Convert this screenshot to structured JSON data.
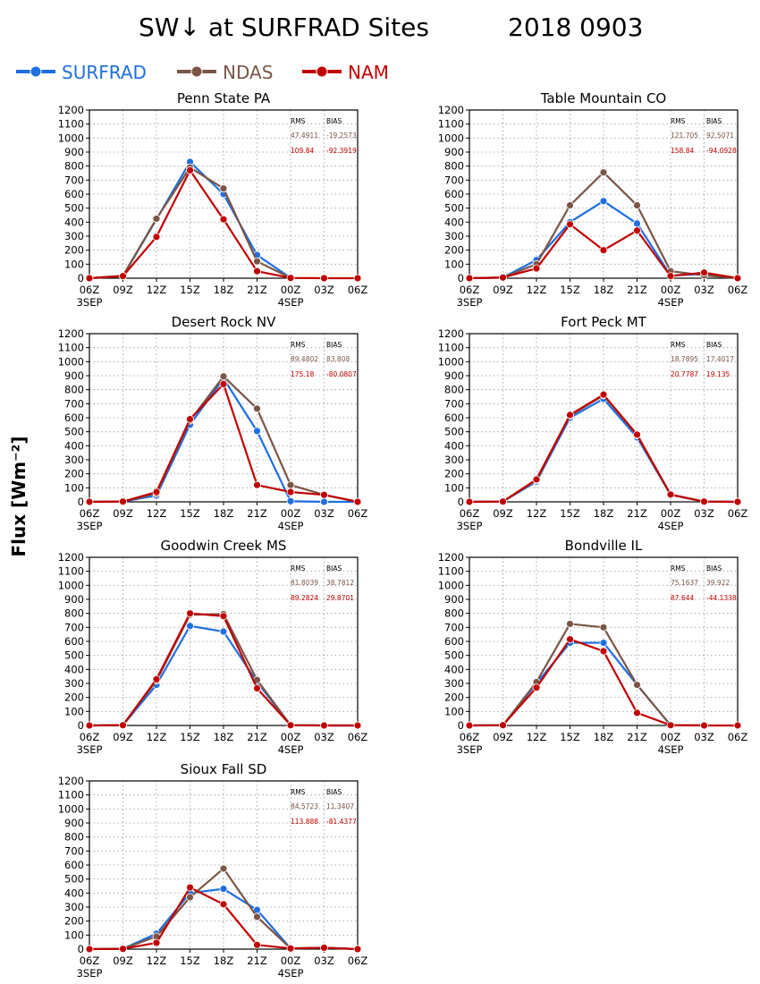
{
  "title": "SW↓ at SURFRAD Sites",
  "date": "2018 0903",
  "ylabel": "Flux [Wm⁻²]",
  "colors": {
    "SURFRAD": "#1f6fe0",
    "NDAS": "#7a5546",
    "NAM": "#c00000"
  },
  "legend": [
    {
      "name": "SURFRAD",
      "color": "#1f6fe0"
    },
    {
      "name": "NDAS",
      "color": "#7a5546"
    },
    {
      "name": "NAM",
      "color": "#c00000"
    }
  ],
  "stats_headers": {
    "rms": "RMS",
    "bias": "BIAS"
  },
  "chart_data": [
    {
      "type": "line",
      "title": "Penn State PA",
      "x": [
        "06Z",
        "09Z",
        "12Z",
        "15Z",
        "18Z",
        "21Z",
        "00Z",
        "03Z",
        "06Z"
      ],
      "date_labels": [
        "3SEP",
        "",
        "",
        "",
        "",
        "",
        "4SEP",
        "",
        ""
      ],
      "ylim": [
        0,
        1200
      ],
      "yticks": [
        0,
        100,
        200,
        300,
        400,
        500,
        600,
        700,
        800,
        900,
        1000,
        1100,
        1200
      ],
      "grid": true,
      "series": [
        {
          "name": "SURFRAD",
          "values": [
            0,
            15,
            420,
            830,
            600,
            165,
            2,
            null,
            null
          ]
        },
        {
          "name": "NDAS",
          "values": [
            0,
            18,
            425,
            790,
            640,
            120,
            2,
            null,
            null
          ]
        },
        {
          "name": "NAM",
          "values": [
            0,
            15,
            295,
            770,
            420,
            50,
            2,
            0,
            0
          ]
        }
      ],
      "stats": {
        "NDAS": {
          "rms": "47.4911",
          "bias": "-19.2573"
        },
        "NAM": {
          "rms": "109.84",
          "bias": "-92.3919"
        }
      }
    },
    {
      "type": "line",
      "title": "Table Mountain CO",
      "x": [
        "06Z",
        "09Z",
        "12Z",
        "15Z",
        "18Z",
        "21Z",
        "00Z",
        "03Z",
        "06Z"
      ],
      "date_labels": [
        "3SEP",
        "",
        "",
        "",
        "",
        "",
        "4SEP",
        "",
        ""
      ],
      "ylim": [
        0,
        1200
      ],
      "yticks": [
        0,
        100,
        200,
        300,
        400,
        500,
        600,
        700,
        800,
        900,
        1000,
        1100,
        1200
      ],
      "grid": true,
      "series": [
        {
          "name": "SURFRAD",
          "values": [
            0,
            5,
            130,
            400,
            550,
            390,
            20,
            30,
            0
          ]
        },
        {
          "name": "NDAS",
          "values": [
            0,
            5,
            100,
            520,
            755,
            520,
            50,
            20,
            0
          ]
        },
        {
          "name": "NAM",
          "values": [
            0,
            5,
            70,
            385,
            200,
            340,
            15,
            40,
            0
          ]
        }
      ],
      "stats": {
        "NDAS": {
          "rms": "121.705",
          "bias": "92.5071"
        },
        "NAM": {
          "rms": "158.84",
          "bias": "-94.0928"
        }
      }
    },
    {
      "type": "line",
      "title": "Desert Rock NV",
      "x": [
        "06Z",
        "09Z",
        "12Z",
        "15Z",
        "18Z",
        "21Z",
        "00Z",
        "03Z",
        "06Z"
      ],
      "date_labels": [
        "3SEP",
        "",
        "",
        "",
        "",
        "",
        "4SEP",
        "",
        ""
      ],
      "ylim": [
        0,
        1200
      ],
      "yticks": [
        0,
        100,
        200,
        300,
        400,
        500,
        600,
        700,
        800,
        900,
        1000,
        1100,
        1200
      ],
      "grid": true,
      "series": [
        {
          "name": "SURFRAD",
          "values": [
            0,
            2,
            45,
            550,
            880,
            505,
            5,
            0,
            0
          ]
        },
        {
          "name": "NDAS",
          "values": [
            0,
            2,
            60,
            580,
            895,
            665,
            120,
            50,
            0
          ]
        },
        {
          "name": "NAM",
          "values": [
            0,
            2,
            70,
            590,
            840,
            120,
            70,
            50,
            0
          ]
        }
      ],
      "stats": {
        "NDAS": {
          "rms": "89.4802",
          "bias": "83.808"
        },
        "NAM": {
          "rms": "175.18",
          "bias": "-80.0807"
        }
      }
    },
    {
      "type": "line",
      "title": "Fort Peck MT",
      "x": [
        "06Z",
        "09Z",
        "12Z",
        "15Z",
        "18Z",
        "21Z",
        "00Z",
        "03Z",
        "06Z"
      ],
      "date_labels": [
        "3SEP",
        "",
        "",
        "",
        "",
        "",
        "4SEP",
        "",
        ""
      ],
      "ylim": [
        0,
        1200
      ],
      "yticks": [
        0,
        100,
        200,
        300,
        400,
        500,
        600,
        700,
        800,
        900,
        1000,
        1100,
        1200
      ],
      "grid": true,
      "series": [
        {
          "name": "SURFRAD",
          "values": [
            0,
            2,
            145,
            600,
            735,
            460,
            50,
            2,
            0
          ]
        },
        {
          "name": "NDAS",
          "values": [
            0,
            2,
            155,
            615,
            760,
            475,
            52,
            2,
            0
          ]
        },
        {
          "name": "NAM",
          "values": [
            0,
            2,
            160,
            620,
            765,
            480,
            52,
            2,
            0
          ]
        }
      ],
      "stats": {
        "NDAS": {
          "rms": "18.7895",
          "bias": "17.4017"
        },
        "NAM": {
          "rms": "20.7787",
          "bias": "19.135"
        }
      }
    },
    {
      "type": "line",
      "title": "Goodwin Creek MS",
      "x": [
        "06Z",
        "09Z",
        "12Z",
        "15Z",
        "18Z",
        "21Z",
        "00Z",
        "03Z",
        "06Z"
      ],
      "date_labels": [
        "3SEP",
        "",
        "",
        "",
        "",
        "",
        "4SEP",
        "",
        ""
      ],
      "ylim": [
        0,
        1200
      ],
      "yticks": [
        0,
        100,
        200,
        300,
        400,
        500,
        600,
        700,
        800,
        900,
        1000,
        1100,
        1200
      ],
      "grid": true,
      "series": [
        {
          "name": "SURFRAD",
          "values": [
            0,
            2,
            290,
            710,
            670,
            310,
            2,
            0,
            0
          ]
        },
        {
          "name": "NDAS",
          "values": [
            0,
            2,
            320,
            790,
            795,
            325,
            2,
            0,
            0
          ]
        },
        {
          "name": "NAM",
          "values": [
            0,
            2,
            330,
            800,
            780,
            265,
            2,
            0,
            0
          ]
        }
      ],
      "stats": {
        "NDAS": {
          "rms": "81.8039",
          "bias": "38.7812"
        },
        "NAM": {
          "rms": "89.2824",
          "bias": "29.8701"
        }
      }
    },
    {
      "type": "line",
      "title": "Bondville IL",
      "x": [
        "06Z",
        "09Z",
        "12Z",
        "15Z",
        "18Z",
        "21Z",
        "00Z",
        "03Z",
        "06Z"
      ],
      "date_labels": [
        "3SEP",
        "",
        "",
        "",
        "",
        "",
        "4SEP",
        "",
        ""
      ],
      "ylim": [
        0,
        1200
      ],
      "yticks": [
        0,
        100,
        200,
        300,
        400,
        500,
        600,
        700,
        800,
        900,
        1000,
        1100,
        1200
      ],
      "grid": true,
      "series": [
        {
          "name": "SURFRAD",
          "values": [
            0,
            2,
            300,
            590,
            590,
            290,
            2,
            null,
            null
          ]
        },
        {
          "name": "NDAS",
          "values": [
            0,
            2,
            310,
            725,
            700,
            290,
            2,
            2,
            null
          ]
        },
        {
          "name": "NAM",
          "values": [
            0,
            2,
            270,
            615,
            530,
            90,
            2,
            0,
            0
          ]
        }
      ],
      "stats": {
        "NDAS": {
          "rms": "75.1637",
          "bias": "39.922"
        },
        "NAM": {
          "rms": "87.644",
          "bias": "-44.1338"
        }
      }
    },
    {
      "type": "line",
      "title": "Sioux Fall SD",
      "x": [
        "06Z",
        "09Z",
        "12Z",
        "15Z",
        "18Z",
        "21Z",
        "00Z",
        "03Z",
        "06Z"
      ],
      "date_labels": [
        "3SEP",
        "",
        "",
        "",
        "",
        "",
        "4SEP",
        "",
        ""
      ],
      "ylim": [
        0,
        1200
      ],
      "yticks": [
        0,
        100,
        200,
        300,
        400,
        500,
        600,
        700,
        800,
        900,
        1000,
        1100,
        1200
      ],
      "grid": true,
      "series": [
        {
          "name": "SURFRAD",
          "values": [
            0,
            2,
            110,
            400,
            430,
            280,
            5,
            10,
            0
          ]
        },
        {
          "name": "NDAS",
          "values": [
            0,
            2,
            90,
            370,
            575,
            230,
            5,
            10,
            0
          ]
        },
        {
          "name": "NAM",
          "values": [
            0,
            2,
            45,
            440,
            320,
            30,
            5,
            10,
            0
          ]
        }
      ],
      "stats": {
        "NDAS": {
          "rms": "84.5723",
          "bias": "11.3407"
        },
        "NAM": {
          "rms": "113.888",
          "bias": "-81.4377"
        }
      }
    }
  ]
}
